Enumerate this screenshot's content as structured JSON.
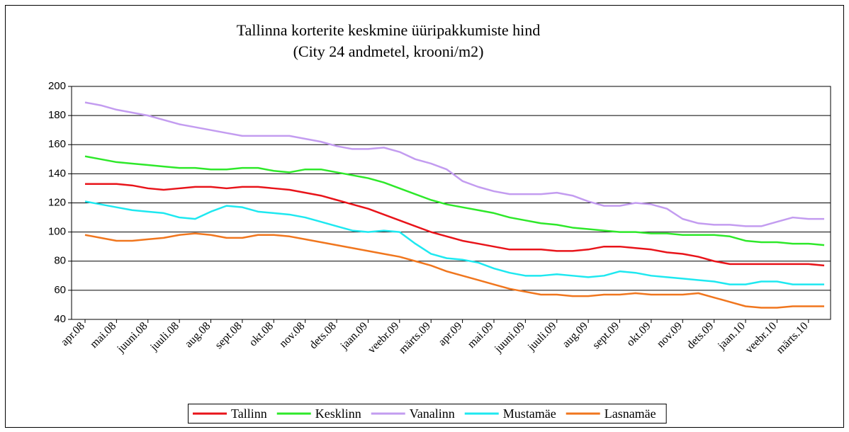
{
  "chart_data": {
    "type": "line",
    "title": "Tallinna korterite keskmine üüripakkumiste hind",
    "subtitle": "(City 24 andmetel, krooni/m2)",
    "categories": [
      "apr.08",
      null,
      "mai.08",
      null,
      "juuni.08",
      null,
      "juuli.08",
      null,
      "aug.08",
      null,
      "sept.08",
      null,
      "okt.08",
      null,
      "nov.08",
      null,
      "dets.08",
      null,
      "jaan.09",
      null,
      "veebr.09",
      null,
      "märts.09",
      null,
      "apr.09",
      null,
      "mai.09",
      null,
      "juuni.09",
      null,
      "juuli.09",
      null,
      "aug.09",
      null,
      "sept.09",
      null,
      "okt.09",
      null,
      "nov.09",
      null,
      "dets.09",
      null,
      "jaan.10",
      null,
      "veebr.10",
      null,
      "märts.10",
      null
    ],
    "series": [
      {
        "name": "Tallinn",
        "color": "#e8141a",
        "values": [
          133,
          133,
          133,
          132,
          130,
          129,
          130,
          131,
          131,
          130,
          131,
          131,
          130,
          129,
          127,
          125,
          122,
          119,
          116,
          112,
          108,
          104,
          100,
          97,
          94,
          92,
          90,
          88,
          88,
          88,
          87,
          87,
          88,
          90,
          90,
          89,
          88,
          86,
          85,
          83,
          80,
          78,
          78,
          78,
          78,
          78,
          78,
          77
        ]
      },
      {
        "name": "Kesklinn",
        "color": "#2ee82a",
        "values": [
          152,
          150,
          148,
          147,
          146,
          145,
          144,
          144,
          143,
          143,
          144,
          144,
          142,
          141,
          143,
          143,
          141,
          139,
          137,
          134,
          130,
          126,
          122,
          119,
          117,
          115,
          113,
          110,
          108,
          106,
          105,
          103,
          102,
          101,
          100,
          100,
          99,
          99,
          98,
          98,
          98,
          97,
          94,
          93,
          93,
          92,
          92,
          91
        ]
      },
      {
        "name": "Vanalinn",
        "color": "#c39cf0",
        "values": [
          189,
          187,
          184,
          182,
          180,
          177,
          174,
          172,
          170,
          168,
          166,
          166,
          166,
          166,
          164,
          162,
          159,
          157,
          157,
          158,
          155,
          150,
          147,
          143,
          135,
          131,
          128,
          126,
          126,
          126,
          127,
          125,
          121,
          118,
          118,
          120,
          119,
          116,
          109,
          106,
          105,
          105,
          104,
          104,
          107,
          110,
          109,
          109
        ]
      },
      {
        "name": "Mustamäe",
        "color": "#1ee8f0",
        "values": [
          121,
          119,
          117,
          115,
          114,
          113,
          110,
          109,
          114,
          118,
          117,
          114,
          113,
          112,
          110,
          107,
          104,
          101,
          100,
          101,
          100,
          92,
          85,
          82,
          81,
          79,
          75,
          72,
          70,
          70,
          71,
          70,
          69,
          70,
          73,
          72,
          70,
          69,
          68,
          67,
          66,
          64,
          64,
          66,
          66,
          64,
          64,
          64
        ]
      },
      {
        "name": "Lasnamäe",
        "color": "#f0761e",
        "values": [
          98,
          96,
          94,
          94,
          95,
          96,
          98,
          99,
          98,
          96,
          96,
          98,
          98,
          97,
          95,
          93,
          91,
          89,
          87,
          85,
          83,
          80,
          77,
          73,
          70,
          67,
          64,
          61,
          59,
          57,
          57,
          56,
          56,
          57,
          57,
          58,
          57,
          57,
          57,
          58,
          55,
          52,
          49,
          48,
          48,
          49,
          49,
          49
        ]
      }
    ],
    "ylim": [
      40,
      200
    ],
    "yticks": [
      40,
      60,
      80,
      100,
      120,
      140,
      160,
      180,
      200
    ],
    "grid": true,
    "legend": "bottom"
  }
}
